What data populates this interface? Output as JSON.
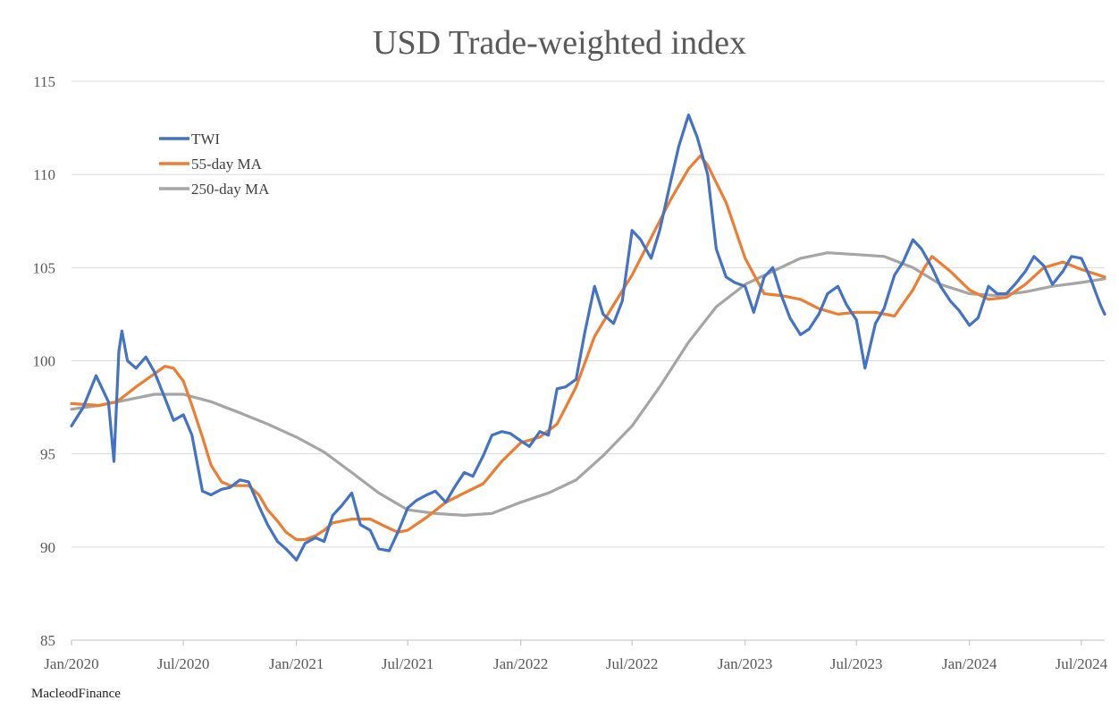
{
  "chart_data": {
    "type": "line",
    "title": "USD Trade-weighted index",
    "xlabel": "",
    "ylabel": "",
    "ylim": [
      85,
      115
    ],
    "y_ticks": [
      "85",
      "90",
      "95",
      "100",
      "105",
      "110",
      "115"
    ],
    "x_ticks": [
      "Jan/2020",
      "Jul/2020",
      "Jan/2021",
      "Jul/2021",
      "Jan/2022",
      "Jul/2022",
      "Jan/2023",
      "Jul/2023",
      "Jan/2024",
      "Jul/2024"
    ],
    "x_range": [
      "2020-01",
      "2024-08"
    ],
    "grid": "horizontal",
    "legend_position": "top-left",
    "colors": {
      "TWI": "#4472c4",
      "55-day MA": "#ed7d31",
      "250-day MA": "#a5a5a5"
    },
    "series": [
      {
        "name": "TWI",
        "x": [
          "2020-01-01",
          "2020-01-20",
          "2020-02-10",
          "2020-03-01",
          "2020-03-10",
          "2020-03-18",
          "2020-03-23",
          "2020-04-01",
          "2020-04-15",
          "2020-05-01",
          "2020-05-15",
          "2020-06-01",
          "2020-06-15",
          "2020-07-01",
          "2020-07-15",
          "2020-08-01",
          "2020-08-15",
          "2020-09-01",
          "2020-09-15",
          "2020-10-01",
          "2020-10-15",
          "2020-11-01",
          "2020-11-15",
          "2020-12-01",
          "2020-12-15",
          "2021-01-01",
          "2021-01-15",
          "2021-02-01",
          "2021-02-15",
          "2021-03-01",
          "2021-03-15",
          "2021-04-01",
          "2021-04-15",
          "2021-05-01",
          "2021-05-15",
          "2021-06-01",
          "2021-06-15",
          "2021-07-01",
          "2021-07-15",
          "2021-08-01",
          "2021-08-15",
          "2021-09-01",
          "2021-09-15",
          "2021-10-01",
          "2021-10-15",
          "2021-11-01",
          "2021-11-15",
          "2021-12-01",
          "2021-12-15",
          "2022-01-01",
          "2022-01-15",
          "2022-02-01",
          "2022-02-15",
          "2022-03-01",
          "2022-03-15",
          "2022-04-01",
          "2022-04-15",
          "2022-05-01",
          "2022-05-15",
          "2022-06-01",
          "2022-06-15",
          "2022-07-01",
          "2022-07-15",
          "2022-08-01",
          "2022-08-15",
          "2022-09-01",
          "2022-09-15",
          "2022-10-01",
          "2022-10-15",
          "2022-11-01",
          "2022-11-15",
          "2022-12-01",
          "2022-12-15",
          "2023-01-01",
          "2023-01-15",
          "2023-02-01",
          "2023-02-15",
          "2023-03-01",
          "2023-03-15",
          "2023-04-01",
          "2023-04-15",
          "2023-05-01",
          "2023-05-15",
          "2023-06-01",
          "2023-06-15",
          "2023-07-01",
          "2023-07-15",
          "2023-08-01",
          "2023-08-15",
          "2023-09-01",
          "2023-09-15",
          "2023-10-01",
          "2023-10-15",
          "2023-11-01",
          "2023-11-15",
          "2023-12-01",
          "2023-12-15",
          "2024-01-01",
          "2024-01-15",
          "2024-02-01",
          "2024-02-15",
          "2024-03-01",
          "2024-03-15",
          "2024-04-01",
          "2024-04-15",
          "2024-05-01",
          "2024-05-15",
          "2024-06-01",
          "2024-06-15",
          "2024-07-01",
          "2024-07-15",
          "2024-08-01",
          "2024-08-08"
        ],
        "values": [
          96.5,
          97.5,
          99.2,
          97.8,
          94.6,
          100.5,
          101.6,
          100.0,
          99.6,
          100.2,
          99.4,
          98.0,
          96.8,
          97.1,
          96.0,
          93.0,
          92.8,
          93.1,
          93.2,
          93.6,
          93.5,
          92.2,
          91.2,
          90.3,
          89.9,
          89.3,
          90.2,
          90.5,
          90.3,
          91.7,
          92.2,
          92.9,
          91.2,
          90.9,
          89.9,
          89.8,
          90.8,
          92.1,
          92.5,
          92.8,
          93.0,
          92.4,
          93.2,
          94.0,
          93.8,
          94.9,
          96.0,
          96.2,
          96.1,
          95.7,
          95.4,
          96.2,
          96.0,
          98.5,
          98.6,
          99.0,
          101.5,
          104.0,
          102.5,
          102.0,
          103.2,
          107.0,
          106.5,
          105.5,
          107.0,
          109.5,
          111.5,
          113.2,
          112.0,
          110.0,
          106.0,
          104.5,
          104.2,
          104.0,
          102.6,
          104.5,
          105.0,
          103.5,
          102.3,
          101.4,
          101.7,
          102.5,
          103.6,
          104.0,
          103.0,
          102.2,
          99.6,
          102.0,
          102.8,
          104.6,
          105.3,
          106.5,
          106.0,
          105.0,
          104.0,
          103.2,
          102.7,
          101.9,
          102.3,
          104.0,
          103.6,
          103.6,
          104.1,
          104.8,
          105.6,
          105.1,
          104.1,
          104.8,
          105.6,
          105.5,
          104.5,
          103.0,
          102.5
        ]
      },
      {
        "name": "55-day MA",
        "x": [
          "2020-01-01",
          "2020-02-15",
          "2020-03-15",
          "2020-04-15",
          "2020-05-15",
          "2020-06-01",
          "2020-06-15",
          "2020-07-01",
          "2020-07-15",
          "2020-08-01",
          "2020-08-15",
          "2020-09-01",
          "2020-09-15",
          "2020-10-01",
          "2020-10-15",
          "2020-11-01",
          "2020-11-15",
          "2020-12-01",
          "2020-12-15",
          "2021-01-01",
          "2021-01-15",
          "2021-02-01",
          "2021-02-15",
          "2021-03-01",
          "2021-04-01",
          "2021-05-01",
          "2021-06-01",
          "2021-06-15",
          "2021-07-01",
          "2021-08-01",
          "2021-09-01",
          "2021-10-01",
          "2021-11-01",
          "2021-12-01",
          "2022-01-01",
          "2022-02-01",
          "2022-03-01",
          "2022-04-01",
          "2022-05-01",
          "2022-06-01",
          "2022-07-01",
          "2022-08-01",
          "2022-09-01",
          "2022-10-01",
          "2022-10-20",
          "2022-11-01",
          "2022-12-01",
          "2023-01-01",
          "2023-02-01",
          "2023-03-01",
          "2023-04-01",
          "2023-05-01",
          "2023-06-01",
          "2023-07-01",
          "2023-08-01",
          "2023-09-01",
          "2023-10-01",
          "2023-10-20",
          "2023-11-01",
          "2023-12-01",
          "2024-01-01",
          "2024-02-01",
          "2024-03-01",
          "2024-04-01",
          "2024-05-01",
          "2024-06-01",
          "2024-07-01",
          "2024-08-08"
        ],
        "values": [
          97.7,
          97.6,
          97.8,
          98.6,
          99.3,
          99.7,
          99.6,
          98.9,
          97.6,
          95.9,
          94.4,
          93.5,
          93.3,
          93.3,
          93.3,
          92.8,
          92.0,
          91.4,
          90.8,
          90.4,
          90.4,
          90.6,
          90.9,
          91.3,
          91.5,
          91.5,
          91.0,
          90.8,
          90.9,
          91.6,
          92.4,
          92.9,
          93.4,
          94.6,
          95.6,
          95.9,
          96.6,
          98.6,
          101.3,
          103.0,
          104.6,
          106.6,
          108.6,
          110.3,
          111.0,
          110.5,
          108.5,
          105.5,
          103.6,
          103.5,
          103.3,
          102.8,
          102.5,
          102.6,
          102.6,
          102.4,
          103.8,
          105.0,
          105.6,
          104.8,
          103.8,
          103.3,
          103.4,
          104.1,
          105.0,
          105.3,
          104.9,
          104.5
        ]
      },
      {
        "name": "250-day MA",
        "x": [
          "2020-01-01",
          "2020-02-15",
          "2020-04-01",
          "2020-05-15",
          "2020-07-01",
          "2020-08-15",
          "2020-10-01",
          "2020-11-15",
          "2021-01-01",
          "2021-02-15",
          "2021-04-01",
          "2021-05-15",
          "2021-07-01",
          "2021-08-15",
          "2021-10-01",
          "2021-11-15",
          "2022-01-01",
          "2022-02-15",
          "2022-04-01",
          "2022-05-15",
          "2022-07-01",
          "2022-08-15",
          "2022-10-01",
          "2022-11-15",
          "2023-01-01",
          "2023-02-15",
          "2023-04-01",
          "2023-05-15",
          "2023-07-01",
          "2023-08-15",
          "2023-10-01",
          "2023-11-15",
          "2024-01-01",
          "2024-02-15",
          "2024-04-01",
          "2024-05-15",
          "2024-07-01",
          "2024-08-08"
        ],
        "values": [
          97.4,
          97.6,
          97.9,
          98.2,
          98.2,
          97.8,
          97.2,
          96.6,
          95.9,
          95.1,
          94.0,
          92.9,
          92.0,
          91.8,
          91.7,
          91.8,
          92.4,
          92.9,
          93.6,
          94.9,
          96.5,
          98.6,
          101.0,
          102.9,
          104.1,
          104.8,
          105.5,
          105.8,
          105.7,
          105.6,
          105.0,
          104.1,
          103.6,
          103.5,
          103.7,
          104.0,
          104.2,
          104.4
        ]
      }
    ]
  },
  "source": "MacleodFinance"
}
